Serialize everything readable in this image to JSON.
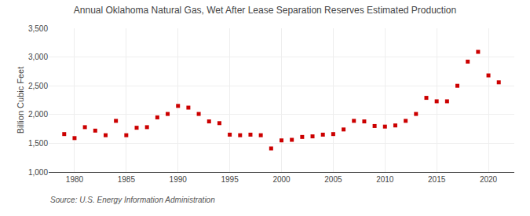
{
  "chart_data": {
    "type": "scatter",
    "title": "Annual Oklahoma Natural Gas, Wet After Lease Separation Reserves Estimated Production",
    "ylabel": "Billion Cubic Feet",
    "annotations": [
      "Source: U.S. Energy Information Administration"
    ],
    "color": "#cc0000",
    "marker": "square",
    "x": [
      1979,
      1980,
      1981,
      1982,
      1983,
      1984,
      1985,
      1986,
      1987,
      1988,
      1989,
      1990,
      1991,
      1992,
      1993,
      1994,
      1995,
      1996,
      1997,
      1998,
      1999,
      2000,
      2001,
      2002,
      2003,
      2004,
      2005,
      2006,
      2007,
      2008,
      2009,
      2010,
      2011,
      2012,
      2013,
      2014,
      2015,
      2016,
      2017,
      2018,
      2019,
      2020,
      2021
    ],
    "values": [
      1660,
      1590,
      1780,
      1720,
      1640,
      1890,
      1640,
      1770,
      1780,
      1950,
      2010,
      2150,
      2120,
      2010,
      1880,
      1850,
      1650,
      1640,
      1650,
      1640,
      1410,
      1550,
      1560,
      1610,
      1620,
      1650,
      1660,
      1740,
      1890,
      1880,
      1800,
      1790,
      1810,
      1890,
      2010,
      2290,
      2230,
      2230,
      2500,
      2920,
      3090,
      2680,
      2560
    ],
    "xlim": [
      1977.5,
      2022.5
    ],
    "ylim": [
      1000,
      3500
    ],
    "xticks": [
      1980,
      1985,
      1990,
      1995,
      2000,
      2005,
      2010,
      2015,
      2020
    ],
    "yticks": [
      {
        "value": 1000,
        "label": "1,000"
      },
      {
        "value": 1500,
        "label": "1,500"
      },
      {
        "value": 2000,
        "label": "2,000"
      },
      {
        "value": 2500,
        "label": "2,500"
      },
      {
        "value": 3000,
        "label": "3,000"
      },
      {
        "value": 3500,
        "label": "3,500"
      }
    ],
    "grid": true
  }
}
